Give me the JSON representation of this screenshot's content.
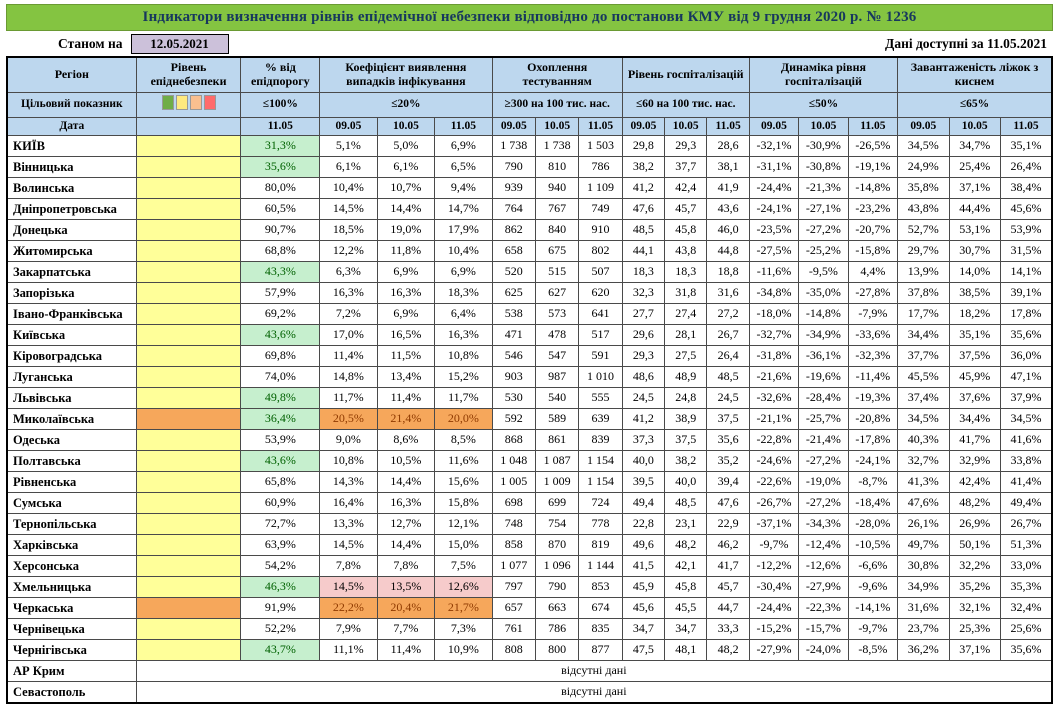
{
  "title": "Індикатори визначення рівнів епідемічної небезпеки відповідно до постанови КМУ від 9 грудня 2020 р. № 1236",
  "meta": {
    "as_of_label": "Станом на",
    "as_of_date": "12.05.2021",
    "available_label": "Дані доступні за",
    "available_date": "11.05.2021"
  },
  "colors": {
    "title_bg": "#84C441",
    "title_text": "#17375E",
    "header_bg": "#BDD7EE",
    "date_box_bg": "#CCC1DA",
    "level_yellow": "#FFFF99",
    "level_orange": "#F6A75B",
    "good_bg": "#C6EFCE",
    "good_text": "#006100",
    "coef_over_bg": "#F6A75B",
    "coef_over_text": "#8F3A00",
    "coef_warn_bg": "#F6CBCB",
    "legend": [
      "#70AD47",
      "#FFE97F",
      "#F9BF8F",
      "#FF6B6B"
    ]
  },
  "header": {
    "region": "Регіон",
    "target_label": "Цільовий показник",
    "date_label": "Дата",
    "groups": [
      {
        "label": "Рівень епіднебезпеки",
        "cols": 1,
        "target": "",
        "legend": true,
        "dates": [
          ""
        ]
      },
      {
        "label": "% від епідпорогу",
        "cols": 1,
        "target": "≤100%",
        "dates": [
          "11.05"
        ]
      },
      {
        "label": "Коефіцієнт виявлення випадків інфікування",
        "cols": 3,
        "target": "≤20%",
        "dates": [
          "09.05",
          "10.05",
          "11.05"
        ]
      },
      {
        "label": "Охоплення тестуванням",
        "cols": 3,
        "target": "≥300 на 100 тис. нас.",
        "dates": [
          "09.05",
          "10.05",
          "11.05"
        ]
      },
      {
        "label": "Рівень госпіталізацій",
        "cols": 3,
        "target": "≤60 на 100 тис. нас.",
        "dates": [
          "09.05",
          "10.05",
          "11.05"
        ]
      },
      {
        "label": "Динаміка рівня госпіталізацій",
        "cols": 3,
        "target": "≤50%",
        "dates": [
          "09.05",
          "10.05",
          "11.05"
        ]
      },
      {
        "label": "Завантаженість ліжок з киснем",
        "cols": 3,
        "target": "≤65%",
        "dates": [
          "09.05",
          "10.05",
          "11.05"
        ]
      }
    ]
  },
  "rows": [
    {
      "region": "КИЇВ",
      "level": "yellow",
      "pct": "31,3%",
      "pct_good": true,
      "coef": [
        "5,1%",
        "5,0%",
        "6,9%"
      ],
      "coef_flag": null,
      "test": [
        "1 738",
        "1 738",
        "1 503"
      ],
      "hosp": [
        "29,8",
        "29,3",
        "28,6"
      ],
      "dyn": [
        "-32,1%",
        "-30,9%",
        "-26,5%"
      ],
      "beds": [
        "34,5%",
        "34,7%",
        "35,1%"
      ]
    },
    {
      "region": "Вінницька",
      "level": "yellow",
      "pct": "35,6%",
      "pct_good": true,
      "coef": [
        "6,1%",
        "6,1%",
        "6,5%"
      ],
      "coef_flag": null,
      "test": [
        "790",
        "810",
        "786"
      ],
      "hosp": [
        "38,2",
        "37,7",
        "38,1"
      ],
      "dyn": [
        "-31,1%",
        "-30,8%",
        "-19,1%"
      ],
      "beds": [
        "24,9%",
        "25,4%",
        "26,4%"
      ]
    },
    {
      "region": "Волинська",
      "level": "yellow",
      "pct": "80,0%",
      "pct_good": false,
      "coef": [
        "10,4%",
        "10,7%",
        "9,4%"
      ],
      "coef_flag": null,
      "test": [
        "939",
        "940",
        "1 109"
      ],
      "hosp": [
        "41,2",
        "42,4",
        "41,9"
      ],
      "dyn": [
        "-24,4%",
        "-21,3%",
        "-14,8%"
      ],
      "beds": [
        "35,8%",
        "37,1%",
        "38,4%"
      ]
    },
    {
      "region": "Дніпропетровська",
      "level": "yellow",
      "pct": "60,5%",
      "pct_good": false,
      "coef": [
        "14,5%",
        "14,4%",
        "14,7%"
      ],
      "coef_flag": null,
      "test": [
        "764",
        "767",
        "749"
      ],
      "hosp": [
        "47,6",
        "45,7",
        "43,6"
      ],
      "dyn": [
        "-24,1%",
        "-27,1%",
        "-23,2%"
      ],
      "beds": [
        "43,8%",
        "44,4%",
        "45,6%"
      ]
    },
    {
      "region": "Донецька",
      "level": "yellow",
      "pct": "90,7%",
      "pct_good": false,
      "coef": [
        "18,5%",
        "19,0%",
        "17,9%"
      ],
      "coef_flag": null,
      "test": [
        "862",
        "840",
        "910"
      ],
      "hosp": [
        "48,5",
        "45,8",
        "46,0"
      ],
      "dyn": [
        "-23,5%",
        "-27,2%",
        "-20,7%"
      ],
      "beds": [
        "52,7%",
        "53,1%",
        "53,9%"
      ]
    },
    {
      "region": "Житомирська",
      "level": "yellow",
      "pct": "68,8%",
      "pct_good": false,
      "coef": [
        "12,2%",
        "11,8%",
        "10,4%"
      ],
      "coef_flag": null,
      "test": [
        "658",
        "675",
        "802"
      ],
      "hosp": [
        "44,1",
        "43,8",
        "44,8"
      ],
      "dyn": [
        "-27,5%",
        "-25,2%",
        "-15,8%"
      ],
      "beds": [
        "29,7%",
        "30,7%",
        "31,5%"
      ]
    },
    {
      "region": "Закарпатська",
      "level": "yellow",
      "pct": "43,3%",
      "pct_good": true,
      "coef": [
        "6,3%",
        "6,9%",
        "6,9%"
      ],
      "coef_flag": null,
      "test": [
        "520",
        "515",
        "507"
      ],
      "hosp": [
        "18,3",
        "18,3",
        "18,8"
      ],
      "dyn": [
        "-11,6%",
        "-9,5%",
        "4,4%"
      ],
      "beds": [
        "13,9%",
        "14,0%",
        "14,1%"
      ]
    },
    {
      "region": "Запорізька",
      "level": "yellow",
      "pct": "57,9%",
      "pct_good": false,
      "coef": [
        "16,3%",
        "16,3%",
        "18,3%"
      ],
      "coef_flag": null,
      "test": [
        "625",
        "627",
        "620"
      ],
      "hosp": [
        "32,3",
        "31,8",
        "31,6"
      ],
      "dyn": [
        "-34,8%",
        "-35,0%",
        "-27,8%"
      ],
      "beds": [
        "37,8%",
        "38,5%",
        "39,1%"
      ]
    },
    {
      "region": "Івано-Франківська",
      "level": "yellow",
      "pct": "69,2%",
      "pct_good": false,
      "coef": [
        "7,2%",
        "6,9%",
        "6,4%"
      ],
      "coef_flag": null,
      "test": [
        "538",
        "573",
        "641"
      ],
      "hosp": [
        "27,7",
        "27,4",
        "27,2"
      ],
      "dyn": [
        "-18,0%",
        "-14,8%",
        "-7,9%"
      ],
      "beds": [
        "17,7%",
        "18,2%",
        "17,8%"
      ]
    },
    {
      "region": "Київська",
      "level": "yellow",
      "pct": "43,6%",
      "pct_good": true,
      "coef": [
        "17,0%",
        "16,5%",
        "16,3%"
      ],
      "coef_flag": null,
      "test": [
        "471",
        "478",
        "517"
      ],
      "hosp": [
        "29,6",
        "28,1",
        "26,7"
      ],
      "dyn": [
        "-32,7%",
        "-34,9%",
        "-33,6%"
      ],
      "beds": [
        "34,4%",
        "35,1%",
        "35,6%"
      ]
    },
    {
      "region": "Кіровоградська",
      "level": "yellow",
      "pct": "69,8%",
      "pct_good": false,
      "coef": [
        "11,4%",
        "11,5%",
        "10,8%"
      ],
      "coef_flag": null,
      "test": [
        "546",
        "547",
        "591"
      ],
      "hosp": [
        "29,3",
        "27,5",
        "26,4"
      ],
      "dyn": [
        "-31,8%",
        "-36,1%",
        "-32,3%"
      ],
      "beds": [
        "37,7%",
        "37,5%",
        "36,0%"
      ]
    },
    {
      "region": "Луганська",
      "level": "yellow",
      "pct": "74,0%",
      "pct_good": false,
      "coef": [
        "14,8%",
        "13,4%",
        "15,2%"
      ],
      "coef_flag": null,
      "test": [
        "903",
        "987",
        "1 010"
      ],
      "hosp": [
        "48,6",
        "48,9",
        "48,5"
      ],
      "dyn": [
        "-21,6%",
        "-19,6%",
        "-11,4%"
      ],
      "beds": [
        "45,5%",
        "45,9%",
        "47,1%"
      ]
    },
    {
      "region": "Львівська",
      "level": "yellow",
      "pct": "49,8%",
      "pct_good": true,
      "coef": [
        "11,7%",
        "11,4%",
        "11,7%"
      ],
      "coef_flag": null,
      "test": [
        "530",
        "540",
        "555"
      ],
      "hosp": [
        "24,5",
        "24,8",
        "24,5"
      ],
      "dyn": [
        "-32,6%",
        "-28,4%",
        "-19,3%"
      ],
      "beds": [
        "37,4%",
        "37,6%",
        "37,9%"
      ]
    },
    {
      "region": "Миколаївська",
      "level": "orange",
      "pct": "36,4%",
      "pct_good": true,
      "coef": [
        "20,5%",
        "21,4%",
        "20,0%"
      ],
      "coef_flag": "over",
      "test": [
        "592",
        "589",
        "639"
      ],
      "hosp": [
        "41,2",
        "38,9",
        "37,5"
      ],
      "dyn": [
        "-21,1%",
        "-25,7%",
        "-20,8%"
      ],
      "beds": [
        "34,5%",
        "34,4%",
        "34,5%"
      ]
    },
    {
      "region": "Одеська",
      "level": "yellow",
      "pct": "53,9%",
      "pct_good": false,
      "coef": [
        "9,0%",
        "8,6%",
        "8,5%"
      ],
      "coef_flag": null,
      "test": [
        "868",
        "861",
        "839"
      ],
      "hosp": [
        "37,3",
        "37,5",
        "35,6"
      ],
      "dyn": [
        "-22,8%",
        "-21,4%",
        "-17,8%"
      ],
      "beds": [
        "40,3%",
        "41,7%",
        "41,6%"
      ]
    },
    {
      "region": "Полтавська",
      "level": "yellow",
      "pct": "43,6%",
      "pct_good": true,
      "coef": [
        "10,8%",
        "10,5%",
        "11,6%"
      ],
      "coef_flag": null,
      "test": [
        "1 048",
        "1 087",
        "1 154"
      ],
      "hosp": [
        "40,0",
        "38,2",
        "35,2"
      ],
      "dyn": [
        "-24,6%",
        "-27,2%",
        "-24,1%"
      ],
      "beds": [
        "32,7%",
        "32,9%",
        "33,8%"
      ]
    },
    {
      "region": "Рівненська",
      "level": "yellow",
      "pct": "65,8%",
      "pct_good": false,
      "coef": [
        "14,3%",
        "14,4%",
        "15,6%"
      ],
      "coef_flag": null,
      "test": [
        "1 005",
        "1 009",
        "1 154"
      ],
      "hosp": [
        "39,5",
        "40,0",
        "39,4"
      ],
      "dyn": [
        "-22,6%",
        "-19,0%",
        "-8,7%"
      ],
      "beds": [
        "41,3%",
        "42,4%",
        "41,4%"
      ]
    },
    {
      "region": "Сумська",
      "level": "yellow",
      "pct": "60,9%",
      "pct_good": false,
      "coef": [
        "16,4%",
        "16,3%",
        "15,8%"
      ],
      "coef_flag": null,
      "test": [
        "698",
        "699",
        "724"
      ],
      "hosp": [
        "49,4",
        "48,5",
        "47,6"
      ],
      "dyn": [
        "-26,7%",
        "-27,2%",
        "-18,4%"
      ],
      "beds": [
        "47,6%",
        "48,2%",
        "49,4%"
      ]
    },
    {
      "region": "Тернопільська",
      "level": "yellow",
      "pct": "72,7%",
      "pct_good": false,
      "coef": [
        "13,3%",
        "12,7%",
        "12,1%"
      ],
      "coef_flag": null,
      "test": [
        "748",
        "754",
        "778"
      ],
      "hosp": [
        "22,8",
        "23,1",
        "22,9"
      ],
      "dyn": [
        "-37,1%",
        "-34,3%",
        "-28,0%"
      ],
      "beds": [
        "26,1%",
        "26,9%",
        "26,7%"
      ]
    },
    {
      "region": "Харківська",
      "level": "yellow",
      "pct": "63,9%",
      "pct_good": false,
      "coef": [
        "14,5%",
        "14,4%",
        "15,0%"
      ],
      "coef_flag": null,
      "test": [
        "858",
        "870",
        "819"
      ],
      "hosp": [
        "49,6",
        "48,2",
        "46,2"
      ],
      "dyn": [
        "-9,7%",
        "-12,4%",
        "-10,5%"
      ],
      "beds": [
        "49,7%",
        "50,1%",
        "51,3%"
      ]
    },
    {
      "region": "Херсонська",
      "level": "yellow",
      "pct": "54,2%",
      "pct_good": false,
      "coef": [
        "7,8%",
        "7,8%",
        "7,5%"
      ],
      "coef_flag": null,
      "test": [
        "1 077",
        "1 096",
        "1 144"
      ],
      "hosp": [
        "41,5",
        "42,1",
        "41,7"
      ],
      "dyn": [
        "-12,2%",
        "-12,6%",
        "-6,6%"
      ],
      "beds": [
        "30,8%",
        "32,2%",
        "33,0%"
      ]
    },
    {
      "region": "Хмельницька",
      "level": "yellow",
      "pct": "46,3%",
      "pct_good": true,
      "coef": [
        "14,5%",
        "13,5%",
        "12,6%"
      ],
      "coef_flag": "warn",
      "test": [
        "797",
        "790",
        "853"
      ],
      "hosp": [
        "45,9",
        "45,8",
        "45,7"
      ],
      "dyn": [
        "-30,4%",
        "-27,9%",
        "-9,6%"
      ],
      "beds": [
        "34,9%",
        "35,2%",
        "35,3%"
      ]
    },
    {
      "region": "Черкаська",
      "level": "orange",
      "pct": "91,9%",
      "pct_good": false,
      "coef": [
        "22,2%",
        "20,4%",
        "21,7%"
      ],
      "coef_flag": "over",
      "test": [
        "657",
        "663",
        "674"
      ],
      "hosp": [
        "45,6",
        "45,5",
        "44,7"
      ],
      "dyn": [
        "-24,4%",
        "-22,3%",
        "-14,1%"
      ],
      "beds": [
        "31,6%",
        "32,1%",
        "32,4%"
      ]
    },
    {
      "region": "Чернівецька",
      "level": "yellow",
      "pct": "52,2%",
      "pct_good": false,
      "coef": [
        "7,9%",
        "7,7%",
        "7,3%"
      ],
      "coef_flag": null,
      "test": [
        "761",
        "786",
        "835"
      ],
      "hosp": [
        "34,7",
        "34,7",
        "33,3"
      ],
      "dyn": [
        "-15,2%",
        "-15,7%",
        "-9,7%"
      ],
      "beds": [
        "23,7%",
        "25,3%",
        "25,6%"
      ]
    },
    {
      "region": "Чернігівська",
      "level": "yellow",
      "pct": "43,7%",
      "pct_good": true,
      "coef": [
        "11,1%",
        "11,4%",
        "10,9%"
      ],
      "coef_flag": null,
      "test": [
        "808",
        "800",
        "877"
      ],
      "hosp": [
        "47,5",
        "48,1",
        "48,2"
      ],
      "dyn": [
        "-27,9%",
        "-24,0%",
        "-8,5%"
      ],
      "beds": [
        "36,2%",
        "37,1%",
        "35,6%"
      ]
    }
  ],
  "no_data": [
    {
      "region": "АР Крим",
      "text": "відсутні дані"
    },
    {
      "region": "Севастополь",
      "text": "відсутні дані"
    }
  ]
}
